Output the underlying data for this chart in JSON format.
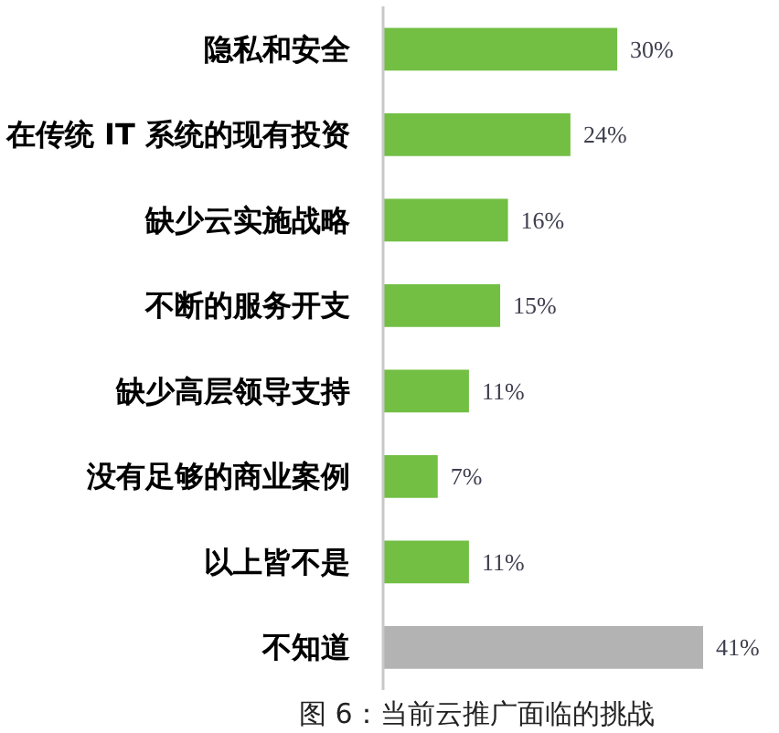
{
  "chart_data": {
    "type": "bar",
    "orientation": "horizontal",
    "categories": [
      "隐私和安全",
      "在传统 IT 系统的现有投资",
      "缺少云实施战略",
      "不断的服务开支",
      "缺少高层领导支持",
      "没有足够的商业案例",
      "以上皆不是",
      "不知道"
    ],
    "values": [
      30,
      24,
      16,
      15,
      11,
      7,
      11,
      41
    ],
    "colors": [
      "#72bf44",
      "#72bf44",
      "#72bf44",
      "#72bf44",
      "#72bf44",
      "#72bf44",
      "#72bf44",
      "#b3b3b3"
    ],
    "value_labels": [
      "30%",
      "24%",
      "16%",
      "15%",
      "11%",
      "7%",
      "11%",
      "41%"
    ],
    "tick_labels": "y",
    "annotations": [
      "图 6：当前云推广面临的挑战"
    ]
  }
}
